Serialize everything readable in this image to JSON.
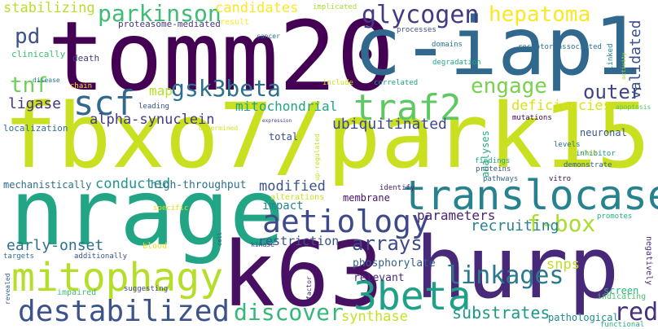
{
  "words": [
    {
      "text": "fbxo7/park15",
      "color": "#c9e020"
    },
    {
      "text": "tomm20",
      "color": "#440154"
    },
    {
      "text": "c-iap1",
      "color": "#31688e"
    },
    {
      "text": "nrage",
      "color": "#21a585"
    },
    {
      "text": "hurp",
      "color": "#482878"
    },
    {
      "text": "k63",
      "color": "#471063"
    },
    {
      "text": "translocase",
      "color": "#26828e"
    },
    {
      "text": "aetiology",
      "color": "#3e4989"
    },
    {
      "text": "mitophagy",
      "color": "#b5de2b"
    },
    {
      "text": "destabilized",
      "color": "#3b528b"
    },
    {
      "text": "3beta",
      "color": "#1fa187"
    },
    {
      "text": "linkages",
      "color": "#2a788e"
    },
    {
      "text": "discover",
      "color": "#35b779"
    },
    {
      "text": "traf2",
      "color": "#5ec962"
    },
    {
      "text": "scf",
      "color": "#31688e"
    },
    {
      "text": "gsk3beta",
      "color": "#2d708e"
    },
    {
      "text": "glycogen",
      "color": "#443a83"
    },
    {
      "text": "hepatoma",
      "color": "#fde725"
    },
    {
      "text": "parkinson",
      "color": "#3fbc73"
    },
    {
      "text": "engage",
      "color": "#7ad151"
    },
    {
      "text": "outer",
      "color": "#414487"
    },
    {
      "text": "f-box",
      "color": "#aadc32"
    },
    {
      "text": "red",
      "color": "#46307e"
    },
    {
      "text": "tnf",
      "color": "#6ece58"
    },
    {
      "text": "pd",
      "color": "#3b528b"
    },
    {
      "text": "substrates",
      "color": "#1f988b"
    },
    {
      "text": "arrays",
      "color": "#3e4a89"
    },
    {
      "text": "early-onset",
      "color": "#2c728e"
    },
    {
      "text": "restriction",
      "color": "#3a538b"
    },
    {
      "text": "recruiting",
      "color": "#26828e"
    },
    {
      "text": "parameters",
      "color": "#482475"
    },
    {
      "text": "snps",
      "color": "#c2df23"
    },
    {
      "text": "synthase",
      "color": "#c8e020"
    },
    {
      "text": "validated",
      "color": "#3b528b"
    },
    {
      "text": "ubiquitinated",
      "color": "#3e4989"
    },
    {
      "text": "deficiencies",
      "color": "#d8e219"
    },
    {
      "text": "alpha-synuclein",
      "color": "#443983"
    },
    {
      "text": "mitochondrial",
      "color": "#20a486"
    },
    {
      "text": "conducted",
      "color": "#1f968b"
    },
    {
      "text": "modified",
      "color": "#3b528b"
    },
    {
      "text": "ligase",
      "color": "#46337e"
    },
    {
      "text": "stabilizing",
      "color": "#b8de29"
    },
    {
      "text": "candidates",
      "color": "#fde725"
    },
    {
      "text": "map",
      "color": "#b4de2c"
    },
    {
      "text": "impact",
      "color": "#25858e"
    },
    {
      "text": "membrane",
      "color": "#471365"
    },
    {
      "text": "phosphorylate",
      "color": "#355f8d"
    },
    {
      "text": "relevant",
      "color": "#472d7b"
    },
    {
      "text": "screen",
      "color": "#2eb37c"
    },
    {
      "text": "pathological",
      "color": "#228c8d"
    },
    {
      "text": "high-throughput",
      "color": "#2d708e"
    },
    {
      "text": "mechanistically",
      "color": "#2e6f8e"
    },
    {
      "text": "neuronal",
      "color": "#39568c"
    },
    {
      "text": "analyses",
      "color": "#26ad81"
    },
    {
      "text": "total",
      "color": "#3e4989"
    },
    {
      "text": "proteasome-mediated",
      "color": "#443a83"
    },
    {
      "text": "clinically",
      "color": "#40bd72"
    },
    {
      "text": "death",
      "color": "#433d84"
    },
    {
      "text": "localization",
      "color": "#2d708e"
    },
    {
      "text": "result",
      "color": "#fde725"
    },
    {
      "text": "implicated",
      "color": "#aadc32"
    },
    {
      "text": "processes",
      "color": "#3b528b"
    },
    {
      "text": "domains",
      "color": "#2a788e"
    },
    {
      "text": "receptor-associated",
      "color": "#2c728e"
    },
    {
      "text": "degradation",
      "color": "#22a884"
    },
    {
      "text": "correlated",
      "color": "#1fa088"
    },
    {
      "text": "include",
      "color": "#cde11d"
    },
    {
      "text": "linked",
      "color": "#277f8e"
    },
    {
      "text": "activity",
      "color": "#a5db36"
    },
    {
      "text": "apoptosis",
      "color": "#52c569"
    },
    {
      "text": "mutations",
      "color": "#440154"
    },
    {
      "text": "determined",
      "color": "#d5e21a"
    },
    {
      "text": "expression",
      "color": "#46327e"
    },
    {
      "text": "findings",
      "color": "#22a884"
    },
    {
      "text": "proteins",
      "color": "#3a548c"
    },
    {
      "text": "levels",
      "color": "#2d708e"
    },
    {
      "text": "vivo",
      "color": "#e5e419"
    },
    {
      "text": "inhibitor",
      "color": "#20928c"
    },
    {
      "text": "demonstrate",
      "color": "#355f8d"
    },
    {
      "text": "pathways",
      "color": "#31688e"
    },
    {
      "text": "vitro",
      "color": "#440154"
    },
    {
      "text": "identify",
      "color": "#482475"
    },
    {
      "text": "alterations",
      "color": "#c8e020"
    },
    {
      "text": "up-regulated",
      "color": "#c5e021"
    },
    {
      "text": "promotes",
      "color": "#26ad81"
    },
    {
      "text": "negatively",
      "color": "#472d7b"
    },
    {
      "text": "specific",
      "color": "#d8e219"
    },
    {
      "text": "blood",
      "color": "#e5e419"
    },
    {
      "text": "cell",
      "color": "#3b528b"
    },
    {
      "text": "kinase",
      "color": "#3e4989"
    },
    {
      "text": "targets",
      "color": "#2c728e"
    },
    {
      "text": "additionally",
      "color": "#3b528b"
    },
    {
      "text": "revealed",
      "color": "#365c8d"
    },
    {
      "text": "impaired",
      "color": "#40bd72"
    },
    {
      "text": "suggesting",
      "color": "#404688"
    },
    {
      "text": "factor",
      "color": "#482677"
    },
    {
      "text": "indicating",
      "color": "#4ac16d"
    },
    {
      "text": "functional",
      "color": "#27ad81"
    },
    {
      "text": "chain",
      "color": "#fde725"
    },
    {
      "text": "disease",
      "color": "#297b8e"
    },
    {
      "text": "leading",
      "color": "#3b528b"
    },
    {
      "text": "cancer",
      "color": "#2c728e"
    }
  ]
}
